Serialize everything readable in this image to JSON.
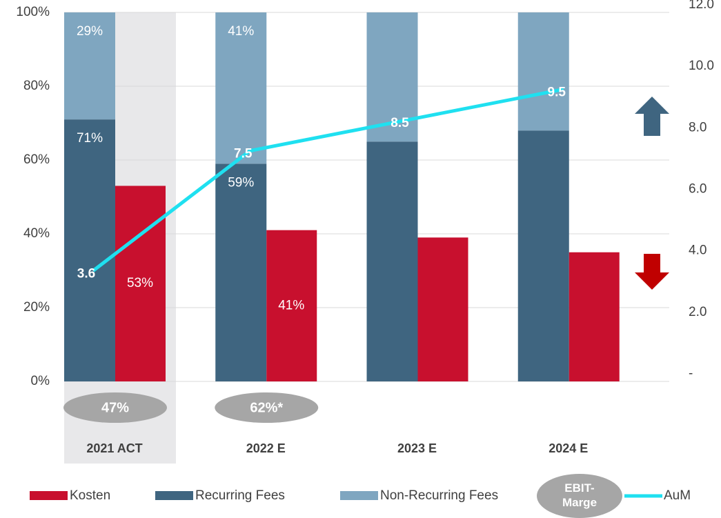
{
  "chart_data": {
    "type": "bar",
    "categories": [
      "2021 ACT",
      "2022 E",
      "2023 E",
      "2024 E"
    ],
    "highlight_category": 0,
    "series": [
      {
        "name": "Kosten",
        "color": "#c8102e",
        "values": [
          53,
          41,
          39,
          35
        ],
        "value_labels": [
          "53%",
          "41%",
          null,
          null
        ]
      },
      {
        "name": "Recurring Fees",
        "color": "#3f6580",
        "values": [
          71,
          59,
          65,
          68
        ],
        "value_labels": [
          "71%",
          "59%",
          null,
          null
        ]
      },
      {
        "name": "Non-Recurring Fees",
        "color": "#7fa6c0",
        "values": [
          29,
          41,
          35,
          32
        ],
        "value_labels": [
          "29%",
          "41%",
          null,
          null
        ]
      },
      {
        "name": "AuM",
        "color": "#1fe0f0",
        "type": "line",
        "axis": "y2",
        "values": [
          3.6,
          7.5,
          8.5,
          9.5
        ],
        "value_labels": [
          null,
          null,
          null,
          null
        ]
      }
    ],
    "ebit_marge": {
      "name": "EBIT-Marge",
      "color": "#a6a6a6",
      "labels": [
        "47%",
        "62%*",
        null,
        null
      ]
    },
    "ylim": [
      0,
      100
    ],
    "yticks": [
      {
        "value": 0,
        "label": "0%"
      },
      {
        "value": 20,
        "label": "20%"
      },
      {
        "value": 40,
        "label": "40%"
      },
      {
        "value": 60,
        "label": "60%"
      },
      {
        "value": 80,
        "label": "80%"
      },
      {
        "value": 100,
        "label": "100%"
      }
    ],
    "y2lim": [
      0,
      12
    ],
    "y2ticks": [
      {
        "value": 0,
        "label": "-"
      },
      {
        "value": 2,
        "label": "2.0"
      },
      {
        "value": 4,
        "label": "4.0"
      },
      {
        "value": 6,
        "label": "6.0"
      },
      {
        "value": 8,
        "label": "8.0"
      },
      {
        "value": 10,
        "label": "10.0"
      },
      {
        "value": 12,
        "label": "12.0"
      }
    ],
    "grid": true
  }
}
